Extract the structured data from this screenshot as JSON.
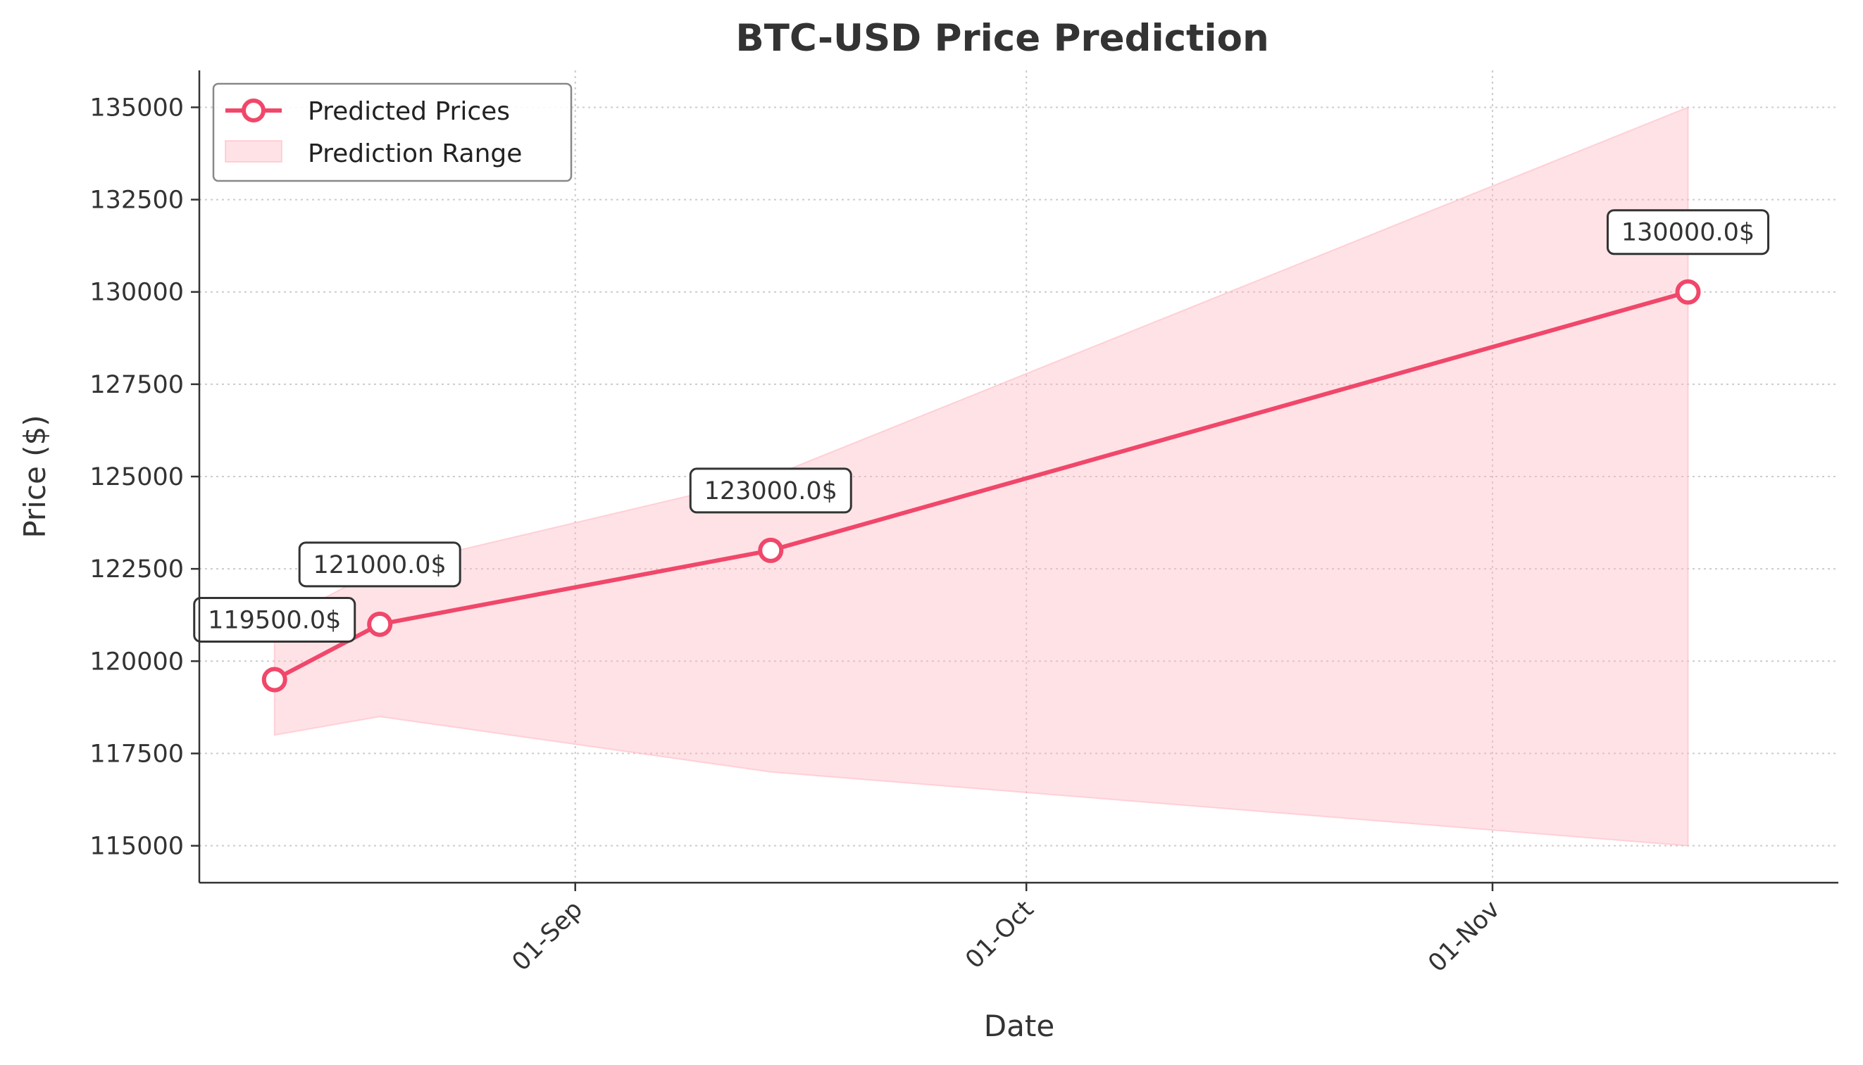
{
  "chart_data": {
    "type": "line",
    "title": "BTC-USD Price Prediction",
    "xlabel": "Date",
    "ylabel": "Price ($)",
    "x_type": "date",
    "xlim": [
      "2025-08-07",
      "2025-11-24"
    ],
    "ylim": [
      114000,
      136000
    ],
    "x_ticks": [
      {
        "date": "2025-09-01",
        "label": "01-Sep"
      },
      {
        "date": "2025-10-01",
        "label": "01-Oct"
      },
      {
        "date": "2025-11-01",
        "label": "01-Nov"
      }
    ],
    "y_ticks": [
      115000,
      117500,
      120000,
      122500,
      125000,
      127500,
      130000,
      132500,
      135000
    ],
    "grid": true,
    "legend_position": "top-left",
    "series": [
      {
        "name": "Predicted Prices",
        "kind": "line",
        "color": "#f0476a",
        "points": [
          {
            "x": "2025-08-12",
            "y": 119500,
            "label": "119500.0$"
          },
          {
            "x": "2025-08-19",
            "y": 121000,
            "label": "121000.0$"
          },
          {
            "x": "2025-09-14",
            "y": 123000,
            "label": "123000.0$"
          },
          {
            "x": "2025-11-14",
            "y": 130000,
            "label": "130000.0$"
          }
        ]
      },
      {
        "name": "Prediction Range",
        "kind": "band",
        "color": "#ffb6c1",
        "points": [
          {
            "x": "2025-08-12",
            "low": 118000,
            "high": 121000
          },
          {
            "x": "2025-08-19",
            "low": 118500,
            "high": 122500
          },
          {
            "x": "2025-09-14",
            "low": 117000,
            "high": 125000
          },
          {
            "x": "2025-11-14",
            "low": 115000,
            "high": 135000
          }
        ]
      }
    ]
  }
}
